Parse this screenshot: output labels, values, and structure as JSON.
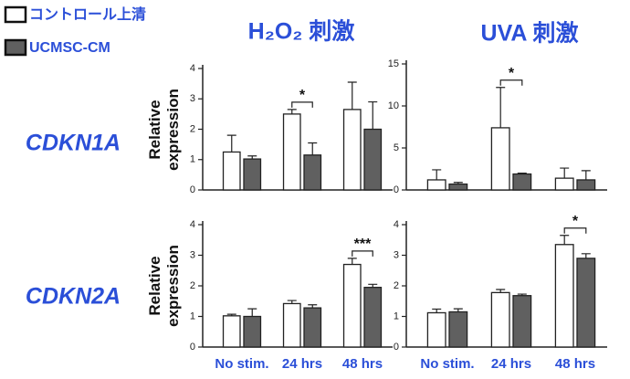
{
  "column_titles": [
    "H₂O₂ 刺激",
    "UVA 刺激"
  ],
  "row_labels": [
    "CDKN1A",
    "CDKN2A"
  ],
  "chart_data": [
    {
      "type": "bar",
      "ylabel": "Relative expression",
      "categories": [
        null,
        null,
        null
      ],
      "ylim": [
        0,
        4
      ],
      "yticks": [
        0,
        1,
        2,
        3,
        4
      ],
      "series": [
        {
          "name": "コントロール上清",
          "color": "#ffffff",
          "values": [
            1.25,
            2.5,
            2.65
          ],
          "errors": [
            0.55,
            0.15,
            0.9
          ]
        },
        {
          "name": "UCMSC-CM",
          "color": "#606060",
          "values": [
            1.02,
            1.15,
            2.0
          ],
          "errors": [
            0.1,
            0.4,
            0.9
          ]
        }
      ],
      "annotations": [
        {
          "text": "*",
          "category": 1
        }
      ]
    },
    {
      "type": "bar",
      "categories": [
        null,
        null,
        null
      ],
      "ylim": [
        0,
        15
      ],
      "yticks": [
        0,
        5,
        10,
        15
      ],
      "series": [
        {
          "name": "コントロール上清",
          "color": "#ffffff",
          "values": [
            1.2,
            7.4,
            1.4
          ],
          "errors": [
            1.2,
            4.8,
            1.2
          ]
        },
        {
          "name": "UCMSC-CM",
          "color": "#606060",
          "values": [
            0.7,
            1.9,
            1.2
          ],
          "errors": [
            0.2,
            0.1,
            1.1
          ]
        }
      ],
      "annotations": [
        {
          "text": "*",
          "category": 1
        }
      ]
    },
    {
      "type": "bar",
      "ylabel": "Relative expression",
      "categories": [
        "No stim.",
        "24 hrs",
        "48 hrs"
      ],
      "ylim": [
        0,
        4
      ],
      "yticks": [
        0,
        1,
        2,
        3,
        4
      ],
      "series": [
        {
          "name": "コントロール上清",
          "color": "#ffffff",
          "values": [
            1.02,
            1.42,
            2.7
          ],
          "errors": [
            0.05,
            0.1,
            0.2
          ]
        },
        {
          "name": "UCMSC-CM",
          "color": "#606060",
          "values": [
            1.0,
            1.28,
            1.95
          ],
          "errors": [
            0.25,
            0.1,
            0.1
          ]
        }
      ],
      "annotations": [
        {
          "text": "***",
          "category": 2
        }
      ]
    },
    {
      "type": "bar",
      "categories": [
        "No stim.",
        "24 hrs",
        "48 hrs"
      ],
      "ylim": [
        0,
        4
      ],
      "yticks": [
        0,
        1,
        2,
        3,
        4
      ],
      "series": [
        {
          "name": "コントロール上清",
          "color": "#ffffff",
          "values": [
            1.12,
            1.78,
            3.35
          ],
          "errors": [
            0.12,
            0.1,
            0.3
          ]
        },
        {
          "name": "UCMSC-CM",
          "color": "#606060",
          "values": [
            1.15,
            1.68,
            2.9
          ],
          "errors": [
            0.1,
            0.05,
            0.15
          ]
        }
      ],
      "annotations": [
        {
          "text": "*",
          "category": 2
        }
      ]
    }
  ]
}
